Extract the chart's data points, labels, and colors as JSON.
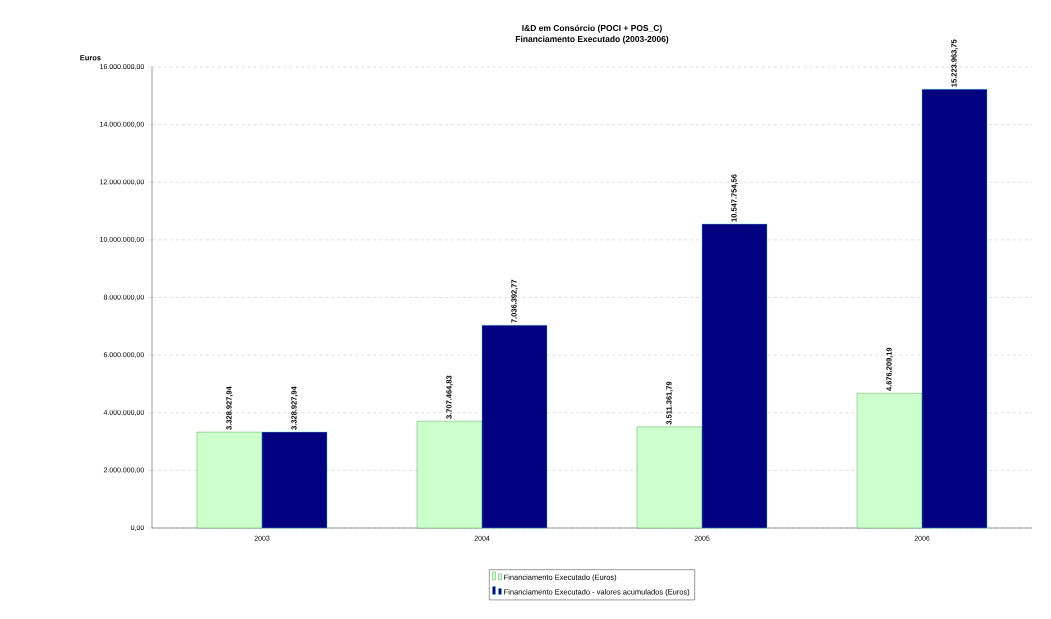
{
  "chart_data": {
    "type": "bar",
    "title": "I&D em Consórcio (POCI + POS_C)",
    "subtitle": "Financiamento Executado (2003-2006)",
    "ylabel": "Euros",
    "categories": [
      "2003",
      "2004",
      "2005",
      "2006"
    ],
    "series": [
      {
        "name": "Financiamento Executado (Euros)",
        "color": "#ccffcc",
        "values": [
          3328927.94,
          3707464.83,
          3511361.79,
          4676209.19
        ],
        "value_labels": [
          "3.328.927,94",
          "3.707.464,83",
          "3.511.361,79",
          "4.676.209,19"
        ]
      },
      {
        "name": "Financiamento Executado - valores acumulados (Euros)",
        "color": "#000080",
        "values": [
          3328927.94,
          7036392.77,
          10547754.56,
          15223963.75
        ],
        "value_labels": [
          "3.328.927,94",
          "7.036.392,77",
          "10.547.754,56",
          "15.223.963,75"
        ]
      }
    ],
    "ylim": [
      0,
      16000000
    ],
    "yticks": [
      {
        "value": 0,
        "label": "0,00"
      },
      {
        "value": 2000000,
        "label": "2.000.000,00"
      },
      {
        "value": 4000000,
        "label": "4.000.000,00"
      },
      {
        "value": 6000000,
        "label": "6.000.000,00"
      },
      {
        "value": 8000000,
        "label": "8.000.000,00"
      },
      {
        "value": 10000000,
        "label": "10.000.000,00"
      },
      {
        "value": 12000000,
        "label": "12.000.000,00"
      },
      {
        "value": 14000000,
        "label": "14.000.000,00"
      },
      {
        "value": 16000000,
        "label": "16.000.000,00"
      }
    ],
    "grid": "y",
    "legend": "bottom"
  }
}
